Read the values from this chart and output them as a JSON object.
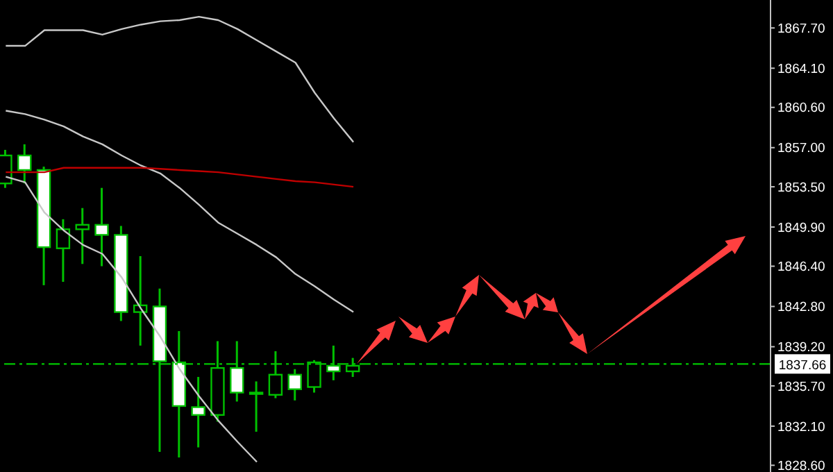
{
  "chart_data": {
    "type": "candlestick",
    "categories": [
      null,
      null,
      null,
      null,
      null,
      null,
      null,
      null,
      null,
      null,
      null,
      null,
      null,
      null,
      null,
      null,
      null,
      null,
      null,
      null,
      null,
      null,
      null,
      null,
      null,
      null,
      null,
      null,
      null,
      null,
      null,
      null,
      null,
      null,
      null,
      null,
      null,
      null,
      null,
      null
    ],
    "ohlc": [
      [
        1853.8,
        1856.8,
        1853.4,
        1856.3
      ],
      [
        1856.3,
        1857.3,
        1853.8,
        1855.0
      ],
      [
        1855.0,
        1855.3,
        1844.7,
        1848.1
      ],
      [
        1848.0,
        1850.6,
        1845.0,
        1849.7
      ],
      [
        1849.7,
        1851.6,
        1846.6,
        1850.1
      ],
      [
        1850.1,
        1853.4,
        1846.4,
        1849.2
      ],
      [
        1849.2,
        1850.0,
        1841.5,
        1842.3
      ],
      [
        1842.3,
        1847.3,
        1839.3,
        1842.9
      ],
      [
        1842.8,
        1844.4,
        1829.8,
        1837.9
      ],
      [
        1837.8,
        1840.6,
        1829.3,
        1833.9
      ],
      [
        1833.8,
        1836.5,
        1830.2,
        1833.1
      ],
      [
        1833.1,
        1839.7,
        1832.5,
        1837.3
      ],
      [
        1837.3,
        1839.7,
        1834.3,
        1835.1
      ],
      [
        1835.1,
        1836.1,
        1831.6,
        1835.1
      ],
      [
        1834.9,
        1838.8,
        1834.6,
        1836.7
      ],
      [
        1836.7,
        1837.2,
        1834.4,
        1835.4
      ],
      [
        1835.6,
        1838.0,
        1835.1,
        1837.8
      ],
      [
        1837.5,
        1839.3,
        1836.2,
        1837.0
      ],
      [
        1837.0,
        1838.2,
        1836.5,
        1837.5
      ],
      null,
      null,
      null,
      null,
      null,
      null,
      null,
      null,
      null,
      null,
      null,
      null,
      null,
      null,
      null,
      null,
      null,
      null,
      null,
      null,
      null
    ],
    "series": [
      {
        "type": "line",
        "color": "#c8c8c8",
        "values": [
          1866.1,
          1866.1,
          1867.5,
          1867.5,
          1867.5,
          1867.1,
          1867.6,
          1868.0,
          1868.3,
          1868.4,
          1868.7,
          1868.4,
          1867.6,
          1866.6,
          1865.6,
          1864.6,
          1861.9,
          1859.6,
          1857.5,
          null,
          null,
          null,
          null,
          null,
          null,
          null,
          null,
          null,
          null,
          null,
          null,
          null,
          null,
          null,
          null,
          null,
          null,
          null,
          null,
          null
        ]
      },
      {
        "type": "line",
        "color": "#c8c8c8",
        "values": [
          1860.3,
          1860.0,
          1859.5,
          1858.9,
          1858.0,
          1857.3,
          1856.3,
          1855.4,
          1854.7,
          1853.4,
          1851.9,
          1850.3,
          1849.3,
          1848.3,
          1847.2,
          1845.7,
          1844.6,
          1843.4,
          1842.3,
          null,
          null,
          null,
          null,
          null,
          null,
          null,
          null,
          null,
          null,
          null,
          null,
          null,
          null,
          null,
          null,
          null,
          null,
          null,
          null,
          null
        ]
      },
      {
        "type": "line",
        "color": "#c8c8c8",
        "values": [
          1854.4,
          1853.9,
          1851.2,
          1849.6,
          1848.3,
          1847.5,
          1845.4,
          1842.6,
          1840.1,
          1837.2,
          1834.8,
          1832.6,
          1830.7,
          1828.9,
          null,
          null,
          null,
          null,
          null,
          null,
          null,
          null,
          null,
          null,
          null,
          null,
          null,
          null,
          null,
          null,
          null,
          null,
          null,
          null,
          null,
          null,
          null,
          null,
          null,
          null
        ]
      },
      {
        "type": "line",
        "color": "#c00000",
        "values": [
          1854.8,
          1854.8,
          1854.8,
          1855.2,
          1855.2,
          1855.2,
          1855.2,
          1855.2,
          1855.1,
          1855.0,
          1854.9,
          1854.8,
          1854.6,
          1854.4,
          1854.2,
          1854.0,
          1853.9,
          1853.7,
          1853.5,
          null,
          null,
          null,
          null,
          null,
          null,
          null,
          null,
          null,
          null,
          null,
          null,
          null,
          null,
          null,
          null,
          null,
          null,
          null,
          null,
          null
        ]
      }
    ],
    "ylim": [
      1828.0,
      1870.2
    ],
    "yticks": [
      {
        "value": 1828.6,
        "label": "1828.60"
      },
      {
        "value": 1832.1,
        "label": "1832.10"
      },
      {
        "value": 1835.7,
        "label": "1835.70"
      },
      {
        "value": 1839.2,
        "label": "1839.20"
      },
      {
        "value": 1842.8,
        "label": "1842.80"
      },
      {
        "value": 1846.4,
        "label": "1846.40"
      },
      {
        "value": 1849.9,
        "label": "1849.90"
      },
      {
        "value": 1853.5,
        "label": "1853.50"
      },
      {
        "value": 1857.0,
        "label": "1857.00"
      },
      {
        "value": 1860.6,
        "label": "1860.60"
      },
      {
        "value": 1864.1,
        "label": "1864.10"
      },
      {
        "value": 1867.7,
        "label": "1867.70"
      }
    ],
    "ref_lines": [
      {
        "axis": "y",
        "value": 1837.66,
        "label": "1837.66",
        "color": "#00c800",
        "line_style": "dashed"
      }
    ],
    "tick_labels": "y"
  }
}
